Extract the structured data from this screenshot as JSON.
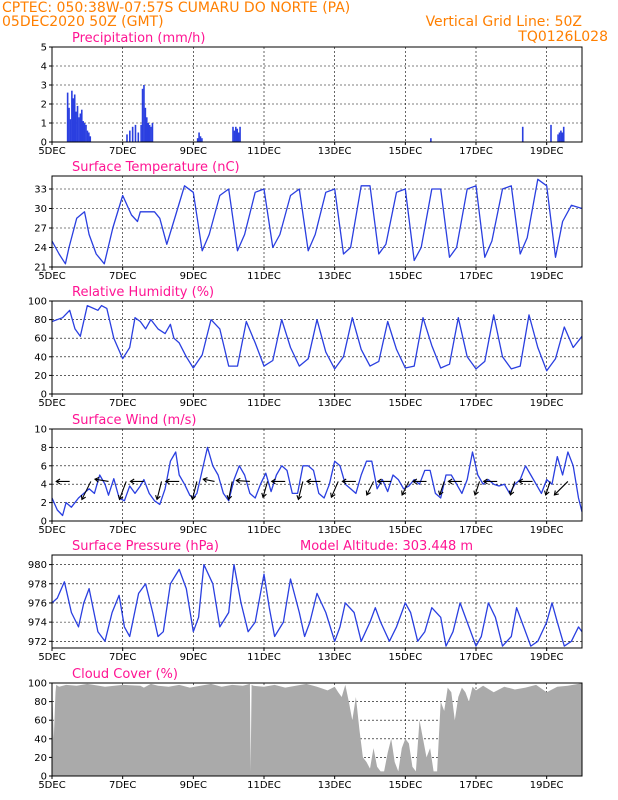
{
  "header": {
    "line1_left": "CPTEC:   050:38W-07:57S   CUMARU DO NORTE (PA)",
    "line2_left": "05DEC2020 50Z (GMT)",
    "line2_right": "Vertical Grid Line: 50Z",
    "line3_right": "TQ0126L028"
  },
  "colors": {
    "header": "#ff7f00",
    "title": "#ff1493",
    "series": "#2a3fe0",
    "cloud": "#aaaaaa",
    "frame": "#000000"
  },
  "x_axis": {
    "labels": [
      "5DEC",
      "7DEC",
      "9DEC",
      "11DEC",
      "13DEC",
      "15DEC",
      "17DEC",
      "19DEC"
    ],
    "label_days": [
      0,
      2,
      4,
      6,
      8,
      10,
      12,
      14
    ],
    "range_days": [
      0,
      15
    ]
  },
  "chart_data": [
    {
      "type": "bar",
      "title": "Precipitation (mm/h)",
      "ylim": [
        0,
        5
      ],
      "yticks": [
        "0",
        "1",
        "2",
        "3",
        "4",
        "5"
      ],
      "x_days": [
        0.42,
        0.46,
        0.5,
        0.54,
        0.58,
        0.62,
        0.66,
        0.7,
        0.74,
        0.78,
        0.82,
        0.86,
        0.9,
        0.94,
        0.98,
        1.02,
        1.06,
        2.1,
        2.18,
        2.26,
        2.34,
        2.42,
        2.5,
        2.54,
        2.58,
        2.62,
        2.66,
        2.7,
        2.74,
        2.78,
        2.82,
        4.1,
        4.14,
        4.18,
        4.22,
        5.1,
        5.14,
        5.18,
        5.22,
        5.26,
        5.3,
        10.7,
        13.3,
        14.1,
        14.3,
        14.34,
        14.38,
        14.42,
        14.46
      ],
      "values": [
        2.6,
        1.8,
        1.2,
        2.7,
        2.3,
        2.5,
        1.6,
        1.9,
        1.3,
        1.5,
        1.7,
        1.1,
        1.0,
        0.9,
        0.6,
        0.5,
        0.3,
        0.4,
        0.6,
        0.8,
        0.9,
        0.5,
        0.9,
        2.8,
        3.0,
        1.8,
        1.3,
        1.0,
        0.9,
        0.8,
        1.0,
        0.2,
        0.5,
        0.3,
        0.2,
        0.8,
        0.6,
        0.8,
        0.7,
        0.5,
        0.8,
        0.2,
        0.8,
        0.9,
        0.4,
        0.5,
        0.6,
        0.5,
        0.8
      ]
    },
    {
      "type": "line",
      "title": "Surface Temperature (nC)",
      "ylim": [
        21,
        35
      ],
      "yticks": [
        "21",
        "24",
        "27",
        "30",
        "33"
      ],
      "x_days": [
        0,
        0.2,
        0.38,
        0.48,
        0.7,
        0.92,
        1.05,
        1.25,
        1.48,
        1.72,
        2.0,
        2.25,
        2.42,
        2.5,
        2.7,
        2.9,
        3.05,
        3.25,
        3.5,
        3.75,
        4.0,
        4.25,
        4.45,
        4.75,
        5.0,
        5.25,
        5.45,
        5.75,
        6.0,
        6.25,
        6.45,
        6.75,
        7.0,
        7.25,
        7.45,
        7.75,
        8.0,
        8.25,
        8.45,
        8.75,
        9.0,
        9.25,
        9.45,
        9.75,
        10.0,
        10.25,
        10.45,
        10.75,
        11.0,
        11.25,
        11.45,
        11.75,
        12.0,
        12.25,
        12.45,
        12.75,
        13.0,
        13.25,
        13.45,
        13.75,
        14.0,
        14.25,
        14.45,
        14.7,
        15.0
      ],
      "values": [
        25,
        23,
        21.5,
        24,
        28.5,
        29.5,
        26,
        23,
        21.5,
        27,
        32,
        29,
        28,
        29.5,
        29.5,
        29.5,
        28.5,
        24.5,
        29,
        33.5,
        32.5,
        23.5,
        26,
        32,
        33,
        23.5,
        26,
        32.5,
        33,
        24,
        26,
        32,
        33,
        23.5,
        26,
        32.5,
        33,
        23,
        24,
        33.5,
        33.5,
        23,
        24.5,
        32.5,
        33,
        22,
        24,
        33,
        33,
        22.5,
        24,
        33,
        33.5,
        22.5,
        25,
        33,
        33.5,
        23,
        25.5,
        34.5,
        33.5,
        22.5,
        28,
        30.5,
        30
      ]
    },
    {
      "type": "line",
      "title": "Relative Humidity (%)",
      "ylim": [
        0,
        100
      ],
      "yticks": [
        "0",
        "20",
        "40",
        "60",
        "80",
        "100"
      ],
      "x_days": [
        0,
        0.3,
        0.5,
        0.65,
        0.8,
        1.0,
        1.3,
        1.4,
        1.55,
        1.75,
        2.0,
        2.2,
        2.35,
        2.5,
        2.65,
        2.8,
        3.0,
        3.2,
        3.35,
        3.45,
        3.6,
        3.8,
        4.0,
        4.25,
        4.5,
        4.75,
        5.0,
        5.25,
        5.5,
        5.75,
        6.0,
        6.25,
        6.5,
        6.75,
        7.0,
        7.25,
        7.5,
        7.75,
        8.0,
        8.25,
        8.5,
        8.75,
        9.0,
        9.25,
        9.5,
        9.75,
        10.0,
        10.25,
        10.5,
        10.75,
        11.0,
        11.25,
        11.5,
        11.75,
        12.0,
        12.25,
        12.5,
        12.75,
        13.0,
        13.25,
        13.5,
        13.75,
        14.0,
        14.25,
        14.5,
        14.75,
        15.0
      ],
      "values": [
        78,
        82,
        90,
        70,
        62,
        95,
        90,
        95,
        92,
        60,
        38,
        50,
        82,
        78,
        70,
        80,
        70,
        65,
        75,
        60,
        55,
        40,
        28,
        42,
        80,
        70,
        30,
        30,
        78,
        55,
        30,
        36,
        80,
        50,
        30,
        38,
        80,
        45,
        27,
        40,
        82,
        48,
        30,
        35,
        78,
        48,
        28,
        30,
        82,
        52,
        28,
        32,
        82,
        40,
        27,
        35,
        85,
        40,
        27,
        30,
        85,
        50,
        25,
        38,
        72,
        50,
        62
      ]
    },
    {
      "type": "line",
      "title": "Surface Wind (m/s)",
      "ylim": [
        0,
        10
      ],
      "yticks": [
        "0",
        "2",
        "4",
        "6",
        "8",
        "10"
      ],
      "x_days": [
        0,
        0.15,
        0.3,
        0.4,
        0.55,
        0.75,
        0.9,
        1.05,
        1.2,
        1.35,
        1.5,
        1.6,
        1.75,
        1.9,
        2.05,
        2.2,
        2.35,
        2.5,
        2.6,
        2.75,
        2.9,
        3.05,
        3.2,
        3.35,
        3.5,
        3.6,
        3.75,
        3.9,
        4.0,
        4.1,
        4.25,
        4.4,
        4.55,
        4.7,
        4.85,
        5.0,
        5.15,
        5.3,
        5.45,
        5.6,
        5.75,
        5.9,
        6.05,
        6.2,
        6.35,
        6.5,
        6.65,
        6.8,
        6.95,
        7.1,
        7.25,
        7.4,
        7.55,
        7.7,
        7.85,
        8.0,
        8.15,
        8.3,
        8.45,
        8.6,
        8.75,
        8.9,
        9.05,
        9.2,
        9.35,
        9.5,
        9.65,
        9.8,
        9.95,
        10.1,
        10.25,
        10.4,
        10.55,
        10.7,
        10.85,
        11.0,
        11.15,
        11.3,
        11.45,
        11.6,
        11.75,
        11.9,
        12.05,
        12.2,
        12.35,
        12.5,
        12.65,
        12.8,
        12.95,
        13.1,
        13.25,
        13.4,
        13.55,
        13.7,
        13.85,
        14.0,
        14.15,
        14.3,
        14.45,
        14.6,
        14.75,
        14.9,
        15.0
      ],
      "values": [
        2.5,
        1.2,
        0.6,
        2.0,
        1.5,
        2.5,
        3.0,
        3.5,
        3.0,
        5.0,
        4.0,
        2.8,
        4.6,
        2.5,
        2.2,
        3.8,
        3.0,
        3.8,
        4.5,
        3.0,
        2.2,
        1.8,
        3.5,
        6.5,
        7.5,
        5.0,
        4.0,
        2.8,
        2.5,
        3.0,
        5.5,
        8.0,
        6.0,
        5.0,
        3.0,
        2.2,
        4.5,
        6.0,
        5.0,
        3.0,
        2.5,
        4.0,
        5.2,
        3.2,
        5.0,
        6.0,
        5.5,
        3.0,
        3.0,
        6.0,
        6.0,
        5.5,
        3.0,
        2.5,
        4.0,
        6.5,
        6.0,
        4.0,
        3.5,
        3.0,
        5.0,
        6.5,
        6.5,
        3.5,
        4.5,
        3.2,
        5.0,
        4.5,
        3.5,
        3.8,
        4.5,
        4.0,
        5.5,
        5.5,
        3.0,
        2.5,
        5.0,
        5.0,
        4.0,
        3.0,
        4.5,
        7.5,
        5.0,
        4.0,
        4.5,
        4.0,
        3.8,
        4.0,
        3.0,
        4.0,
        4.5,
        6.0,
        5.0,
        4.0,
        3.0,
        4.5,
        4.0,
        7.0,
        5.0,
        7.5,
        6.0,
        2.5,
        1.0
      ]
    },
    {
      "type": "line",
      "title": "Surface Pressure (hPa)",
      "subtitle": "Model Altitude: 303.448 m",
      "ylim": [
        971.3,
        981
      ],
      "yticks": [
        "972",
        "974",
        "976",
        "978",
        "980"
      ],
      "x_days": [
        0,
        0.15,
        0.35,
        0.55,
        0.75,
        0.9,
        1.05,
        1.3,
        1.5,
        1.7,
        1.9,
        2.05,
        2.2,
        2.45,
        2.65,
        2.85,
        3.0,
        3.15,
        3.35,
        3.6,
        3.8,
        4.0,
        4.15,
        4.3,
        4.55,
        4.75,
        5.0,
        5.15,
        5.35,
        5.55,
        5.75,
        6.0,
        6.15,
        6.3,
        6.55,
        6.75,
        7.0,
        7.15,
        7.3,
        7.5,
        7.75,
        8.0,
        8.15,
        8.3,
        8.55,
        8.75,
        9.0,
        9.15,
        9.3,
        9.55,
        9.75,
        10.0,
        10.15,
        10.35,
        10.55,
        10.75,
        11.0,
        11.15,
        11.35,
        11.55,
        11.75,
        12.0,
        12.15,
        12.35,
        12.55,
        12.75,
        13.0,
        13.15,
        13.35,
        13.55,
        13.75,
        14.0,
        14.15,
        14.3,
        14.5,
        14.7,
        14.9,
        15.0
      ],
      "values": [
        976,
        976.5,
        978.2,
        975,
        973.5,
        976,
        977.5,
        973,
        972,
        975,
        976.8,
        973.5,
        972.5,
        977,
        978,
        975,
        972.5,
        973,
        978,
        979.5,
        977.5,
        973,
        974.5,
        980,
        978,
        973.5,
        975,
        980,
        976,
        973,
        974,
        979,
        975.5,
        972.5,
        974,
        978.5,
        975,
        972.5,
        974,
        977,
        975,
        972,
        973.5,
        976,
        975,
        972,
        974,
        975.5,
        974,
        972,
        973.5,
        976,
        975,
        972,
        973,
        975.5,
        974.5,
        971.5,
        973,
        976,
        974,
        971.5,
        972.5,
        976,
        974.5,
        971.5,
        972.5,
        975.5,
        973.5,
        971.5,
        972,
        974,
        976,
        974,
        971.5,
        972,
        973.5,
        973
      ]
    },
    {
      "type": "area",
      "title": "Cloud Cover (%)",
      "ylim": [
        0,
        100
      ],
      "yticks": [
        "0",
        "20",
        "40",
        "60",
        "80",
        "100"
      ],
      "x_days": [
        0,
        0.05,
        0.1,
        0.12,
        0.2,
        0.4,
        0.7,
        1.0,
        1.5,
        2.0,
        2.5,
        2.6,
        2.8,
        3.0,
        3.3,
        3.6,
        3.9,
        4.2,
        4.5,
        4.8,
        5.1,
        5.4,
        5.6,
        5.62,
        5.65,
        5.7,
        6.0,
        6.3,
        6.6,
        6.9,
        7.2,
        7.5,
        7.8,
        8.0,
        8.1,
        8.2,
        8.3,
        8.4,
        8.5,
        8.6,
        8.7,
        8.8,
        8.9,
        9.0,
        9.1,
        9.2,
        9.3,
        9.4,
        9.5,
        9.6,
        9.7,
        9.8,
        9.9,
        10.0,
        10.1,
        10.2,
        10.3,
        10.4,
        10.5,
        10.6,
        10.7,
        10.8,
        10.9,
        11.0,
        11.1,
        11.2,
        11.3,
        11.4,
        11.5,
        11.6,
        11.7,
        11.8,
        11.9,
        12.0,
        12.2,
        12.5,
        12.8,
        13.1,
        13.4,
        13.7,
        14.0,
        14.3,
        14.6,
        14.9,
        15.0
      ],
      "values": [
        100,
        40,
        90,
        98,
        96,
        98,
        97,
        99,
        96,
        98,
        97,
        95,
        99,
        97,
        96,
        98,
        95,
        97,
        99,
        96,
        98,
        97,
        99,
        5,
        98,
        97,
        96,
        98,
        95,
        97,
        99,
        96,
        92,
        96,
        90,
        85,
        98,
        80,
        60,
        85,
        50,
        20,
        15,
        8,
        30,
        10,
        5,
        5,
        25,
        40,
        15,
        5,
        30,
        40,
        35,
        10,
        5,
        60,
        40,
        20,
        30,
        5,
        5,
        80,
        70,
        95,
        90,
        60,
        85,
        95,
        90,
        80,
        96,
        92,
        97,
        90,
        96,
        93,
        95,
        98,
        90,
        96,
        97,
        99,
        100
      ]
    }
  ],
  "wind_vectors": {
    "x_days": [
      0.5,
      1.1,
      1.6,
      2.1,
      2.6,
      3.1,
      3.6,
      4.1,
      4.6,
      5.1,
      5.6,
      6.1,
      6.6,
      7.1,
      7.6,
      8.1,
      8.6,
      9.1,
      9.6,
      10.1,
      10.6,
      11.1,
      11.6,
      12.1,
      12.6,
      13.1,
      13.6,
      14.1,
      14.6
    ],
    "u_ms": [
      -3,
      -2,
      -3,
      -1.5,
      -3,
      -1,
      -3,
      -1,
      -2.5,
      -0.8,
      -3,
      -1,
      -3,
      -1,
      -3,
      -1.5,
      -3,
      -1.5,
      -3,
      -1.5,
      -3,
      -1,
      -3,
      -1,
      -3,
      -1,
      -3,
      -1,
      -3
    ],
    "v_ms": [
      0,
      -4,
      0.5,
      -4,
      0,
      -4,
      0,
      -4,
      0.5,
      -4,
      0.2,
      -3.5,
      0,
      -4,
      0,
      -3.5,
      0,
      -3,
      0,
      -3,
      0,
      -3,
      0,
      -3,
      0,
      -3,
      0,
      -3,
      -3
    ]
  }
}
